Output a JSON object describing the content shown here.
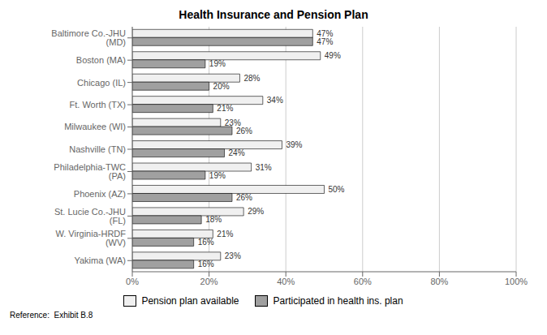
{
  "chart_data": {
    "type": "bar",
    "orientation": "horizontal",
    "title": "Health Insurance and Pension Plan",
    "categories": [
      "Baltimore Co.-JHU (MD)",
      "Boston (MA)",
      "Chicago (IL)",
      "Ft. Worth (TX)",
      "Milwaukee (WI)",
      "Nashville (TN)",
      "Philadelphia-TWC (PA)",
      "Phoenix (AZ)",
      "St. Lucie Co.-JHU (FL)",
      "W. Virginia-HRDF (WV)",
      "Yakima (WA)"
    ],
    "series": [
      {
        "name": "Pension plan available",
        "color": "#f0f0f0",
        "values": [
          47,
          49,
          28,
          34,
          23,
          39,
          31,
          50,
          29,
          21,
          23
        ],
        "value_labels": [
          "47%",
          "49%",
          "28%",
          "34%",
          "23%",
          "39%",
          "31%",
          "50%",
          "29%",
          "21%",
          "23%"
        ]
      },
      {
        "name": "Participated in health ins. plan",
        "color": "#a0a0a0",
        "values": [
          47,
          19,
          20,
          21,
          26,
          24,
          19,
          26,
          18,
          16,
          16
        ],
        "value_labels": [
          "47%",
          "19%",
          "20%",
          "21%",
          "26%",
          "24%",
          "19%",
          "26%",
          "18%",
          "16%",
          "16%"
        ]
      }
    ],
    "xlim": [
      0,
      100
    ],
    "xticks": [
      {
        "value": 0,
        "label": "0%"
      },
      {
        "value": 20,
        "label": "20%"
      },
      {
        "value": 40,
        "label": "40%"
      },
      {
        "value": 60,
        "label": "60%"
      },
      {
        "value": 80,
        "label": "80%"
      },
      {
        "value": 100,
        "label": "100%"
      }
    ],
    "grid": true,
    "legend": "bottom",
    "data_labels": true,
    "annotations": [
      "Reference:  Exhibit B.8"
    ]
  }
}
